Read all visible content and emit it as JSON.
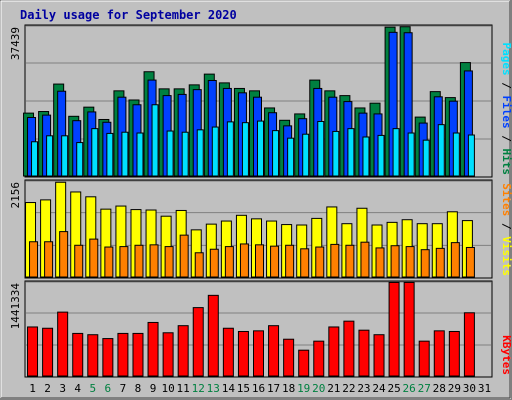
{
  "chart_data": {
    "type": "bar",
    "title": "Daily usage for September 2020",
    "days": [
      "1",
      "2",
      "3",
      "4",
      "5",
      "6",
      "7",
      "8",
      "9",
      "10",
      "11",
      "12",
      "13",
      "14",
      "15",
      "16",
      "17",
      "18",
      "19",
      "20",
      "21",
      "22",
      "23",
      "24",
      "25",
      "26",
      "27",
      "28",
      "29",
      "30",
      "31"
    ],
    "weekend_days": [
      "5",
      "6",
      "12",
      "13",
      "19",
      "20",
      "26",
      "27"
    ],
    "colors": {
      "hits": "#008040",
      "files": "#0040ff",
      "pages": "#00e0ff",
      "visits": "#ffff00",
      "sites": "#ff8000",
      "kbytes": "#ff0000",
      "weekday_label": "#000000",
      "weekend_label": "#008040",
      "title": "#0000a0",
      "background": "#c0c0c0"
    },
    "panels": [
      {
        "name": "hits-files-pages",
        "ymax_label": "37439",
        "ymax": 37439,
        "legend": [
          {
            "label": "Hits",
            "color": "#008040"
          },
          {
            "label": "Files",
            "color": "#0040ff"
          },
          {
            "label": "Pages",
            "color": "#00e0ff"
          }
        ],
        "separator": "/",
        "series": [
          {
            "name": "Hits",
            "color": "#008040",
            "values": [
              15800,
              16200,
              23100,
              15000,
              17300,
              14200,
              21400,
              19100,
              26200,
              21900,
              21900,
              22900,
              25600,
              23400,
              22000,
              21400,
              17100,
              14000,
              15600,
              24100,
              21400,
              20200,
              17100,
              18300,
              37400,
              37500,
              14800,
              21200,
              19700,
              28500,
              null
            ]
          },
          {
            "name": "Files",
            "color": "#0040ff",
            "values": [
              14700,
              15300,
              21300,
              13900,
              16100,
              13500,
              19800,
              17900,
              24100,
              20200,
              20500,
              21700,
              24000,
              22000,
              20900,
              19800,
              15900,
              12600,
              14400,
              22000,
              19800,
              18700,
              15800,
              15600,
              36100,
              36000,
              13300,
              19900,
              18800,
              26400,
              null
            ]
          },
          {
            "name": "Pages",
            "color": "#00e0ff",
            "values": [
              8600,
              10100,
              10100,
              8400,
              11900,
              10700,
              11000,
              10800,
              17900,
              11300,
              11000,
              11600,
              12300,
              13600,
              13400,
              13800,
              11400,
              9500,
              10500,
              13700,
              11200,
              11900,
              9800,
              10200,
              11900,
              10800,
              9000,
              12900,
              10800,
              10300,
              null
            ]
          }
        ]
      },
      {
        "name": "visits-sites",
        "ymax_label": "2156",
        "ymax": 2156,
        "legend": [
          {
            "label": "Visits",
            "color": "#ffff00"
          },
          {
            "label": "Sites",
            "color": "#ff8000"
          }
        ],
        "separator": "/",
        "series": [
          {
            "name": "Visits",
            "color": "#ffff00",
            "values": [
              1690,
              1750,
              2150,
              1930,
              1820,
              1540,
              1610,
              1530,
              1520,
              1380,
              1510,
              1070,
              1200,
              1270,
              1400,
              1320,
              1270,
              1190,
              1180,
              1330,
              1590,
              1210,
              1560,
              1180,
              1240,
              1300,
              1210,
              1210,
              1480,
              1280,
              null
            ]
          },
          {
            "name": "Sites",
            "color": "#ff8000",
            "values": [
              800,
              800,
              1030,
              720,
              860,
              680,
              690,
              720,
              730,
              690,
              950,
              550,
              630,
              690,
              750,
              730,
              700,
              720,
              640,
              680,
              740,
              720,
              790,
              660,
              710,
              690,
              620,
              650,
              780,
              670,
              null
            ]
          }
        ]
      },
      {
        "name": "kbytes",
        "ymax_label": "1441334",
        "ymax": 1441334,
        "legend": [
          {
            "label": "KBytes",
            "color": "#ff0000"
          }
        ],
        "separator": "",
        "series": [
          {
            "name": "KBytes",
            "color": "#ff0000",
            "values": [
              760000,
              740000,
              990000,
              660000,
              640000,
              580000,
              660000,
              660000,
              830000,
              670000,
              780000,
              1060000,
              1250000,
              740000,
              690000,
              700000,
              780000,
              570000,
              400000,
              540000,
              760000,
              850000,
              710000,
              640000,
              1450000,
              1450000,
              540000,
              700000,
              690000,
              980000,
              null
            ]
          }
        ]
      }
    ]
  }
}
